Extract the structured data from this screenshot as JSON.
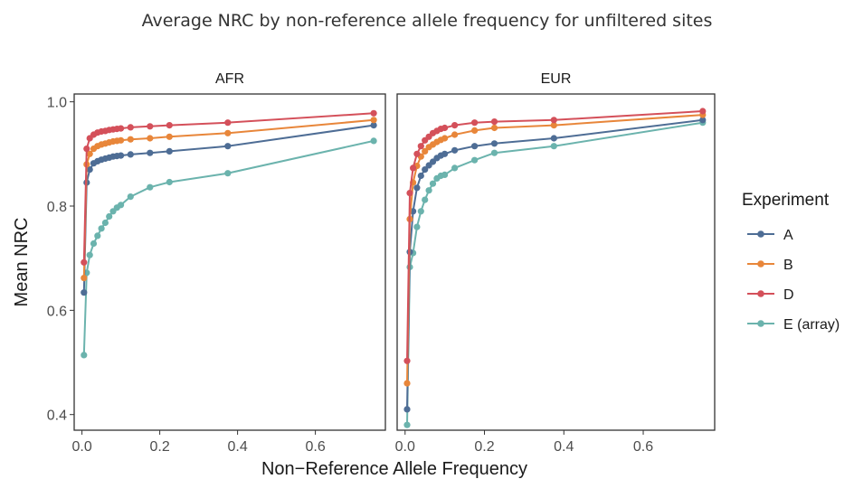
{
  "page": {
    "title": "Average NRC by non-reference allele frequency for unfiltered sites"
  },
  "chart_data": {
    "type": "line",
    "xlabel": "Non−Reference Allele Frequency",
    "ylabel": "Mean NRC",
    "xlim": [
      -0.02,
      0.78
    ],
    "ylim": [
      0.37,
      1.015
    ],
    "xticks": [
      0.0,
      0.2,
      0.4,
      0.6
    ],
    "xtick_labels": [
      "0.0",
      "0.2",
      "0.4",
      "0.6"
    ],
    "yticks": [
      0.4,
      0.6,
      0.8,
      1.0
    ],
    "ytick_labels": [
      "0.4",
      "0.6",
      "0.8",
      "1.0"
    ],
    "grid": false,
    "legend": {
      "title": "Experiment",
      "position": "right"
    },
    "series_styles": [
      {
        "name": "A",
        "color": "#4e6d95"
      },
      {
        "name": "B",
        "color": "#e8863a"
      },
      {
        "name": "D",
        "color": "#d4505a"
      },
      {
        "name": "E (array)",
        "color": "#6bb3ad"
      }
    ],
    "panels": [
      {
        "name": "AFR",
        "series": [
          {
            "name": "A",
            "points": [
              [
                0.005,
                0.634
              ],
              [
                0.012,
                0.845
              ],
              [
                0.02,
                0.87
              ],
              [
                0.03,
                0.882
              ],
              [
                0.04,
                0.886
              ],
              [
                0.05,
                0.889
              ],
              [
                0.06,
                0.891
              ],
              [
                0.07,
                0.893
              ],
              [
                0.08,
                0.895
              ],
              [
                0.09,
                0.896
              ],
              [
                0.1,
                0.897
              ],
              [
                0.125,
                0.899
              ],
              [
                0.175,
                0.902
              ],
              [
                0.225,
                0.905
              ],
              [
                0.375,
                0.915
              ],
              [
                0.75,
                0.955
              ]
            ]
          },
          {
            "name": "B",
            "points": [
              [
                0.005,
                0.662
              ],
              [
                0.012,
                0.88
              ],
              [
                0.02,
                0.9
              ],
              [
                0.03,
                0.91
              ],
              [
                0.04,
                0.915
              ],
              [
                0.05,
                0.918
              ],
              [
                0.06,
                0.92
              ],
              [
                0.07,
                0.922
              ],
              [
                0.08,
                0.924
              ],
              [
                0.09,
                0.925
              ],
              [
                0.1,
                0.926
              ],
              [
                0.125,
                0.928
              ],
              [
                0.175,
                0.93
              ],
              [
                0.225,
                0.933
              ],
              [
                0.375,
                0.94
              ],
              [
                0.75,
                0.965
              ]
            ]
          },
          {
            "name": "D",
            "points": [
              [
                0.005,
                0.692
              ],
              [
                0.012,
                0.91
              ],
              [
                0.02,
                0.93
              ],
              [
                0.03,
                0.937
              ],
              [
                0.04,
                0.941
              ],
              [
                0.05,
                0.943
              ],
              [
                0.06,
                0.944
              ],
              [
                0.07,
                0.946
              ],
              [
                0.08,
                0.947
              ],
              [
                0.09,
                0.948
              ],
              [
                0.1,
                0.949
              ],
              [
                0.125,
                0.951
              ],
              [
                0.175,
                0.953
              ],
              [
                0.225,
                0.955
              ],
              [
                0.375,
                0.96
              ],
              [
                0.75,
                0.978
              ]
            ]
          },
          {
            "name": "E (array)",
            "points": [
              [
                0.005,
                0.514
              ],
              [
                0.012,
                0.672
              ],
              [
                0.02,
                0.706
              ],
              [
                0.03,
                0.728
              ],
              [
                0.04,
                0.743
              ],
              [
                0.05,
                0.757
              ],
              [
                0.06,
                0.768
              ],
              [
                0.07,
                0.78
              ],
              [
                0.08,
                0.79
              ],
              [
                0.09,
                0.797
              ],
              [
                0.1,
                0.802
              ],
              [
                0.125,
                0.818
              ],
              [
                0.175,
                0.836
              ],
              [
                0.225,
                0.846
              ],
              [
                0.375,
                0.863
              ],
              [
                0.75,
                0.925
              ]
            ]
          }
        ]
      },
      {
        "name": "EUR",
        "series": [
          {
            "name": "A",
            "points": [
              [
                0.005,
                0.41
              ],
              [
                0.012,
                0.712
              ],
              [
                0.02,
                0.79
              ],
              [
                0.03,
                0.835
              ],
              [
                0.04,
                0.858
              ],
              [
                0.05,
                0.87
              ],
              [
                0.06,
                0.878
              ],
              [
                0.07,
                0.885
              ],
              [
                0.08,
                0.892
              ],
              [
                0.09,
                0.897
              ],
              [
                0.1,
                0.9
              ],
              [
                0.125,
                0.907
              ],
              [
                0.175,
                0.915
              ],
              [
                0.225,
                0.92
              ],
              [
                0.375,
                0.93
              ],
              [
                0.75,
                0.965
              ]
            ]
          },
          {
            "name": "B",
            "points": [
              [
                0.005,
                0.46
              ],
              [
                0.012,
                0.775
              ],
              [
                0.02,
                0.845
              ],
              [
                0.03,
                0.877
              ],
              [
                0.04,
                0.895
              ],
              [
                0.05,
                0.905
              ],
              [
                0.06,
                0.913
              ],
              [
                0.07,
                0.918
              ],
              [
                0.08,
                0.923
              ],
              [
                0.09,
                0.927
              ],
              [
                0.1,
                0.93
              ],
              [
                0.125,
                0.937
              ],
              [
                0.175,
                0.945
              ],
              [
                0.225,
                0.95
              ],
              [
                0.375,
                0.955
              ],
              [
                0.75,
                0.975
              ]
            ]
          },
          {
            "name": "D",
            "points": [
              [
                0.005,
                0.503
              ],
              [
                0.012,
                0.825
              ],
              [
                0.02,
                0.873
              ],
              [
                0.03,
                0.9
              ],
              [
                0.04,
                0.915
              ],
              [
                0.05,
                0.926
              ],
              [
                0.06,
                0.933
              ],
              [
                0.07,
                0.94
              ],
              [
                0.08,
                0.944
              ],
              [
                0.09,
                0.948
              ],
              [
                0.1,
                0.95
              ],
              [
                0.125,
                0.955
              ],
              [
                0.175,
                0.96
              ],
              [
                0.225,
                0.962
              ],
              [
                0.375,
                0.965
              ],
              [
                0.75,
                0.982
              ]
            ]
          },
          {
            "name": "E (array)",
            "points": [
              [
                0.005,
                0.38
              ],
              [
                0.012,
                0.683
              ],
              [
                0.02,
                0.71
              ],
              [
                0.03,
                0.76
              ],
              [
                0.04,
                0.79
              ],
              [
                0.05,
                0.812
              ],
              [
                0.06,
                0.83
              ],
              [
                0.07,
                0.843
              ],
              [
                0.08,
                0.853
              ],
              [
                0.09,
                0.858
              ],
              [
                0.1,
                0.86
              ],
              [
                0.125,
                0.873
              ],
              [
                0.175,
                0.888
              ],
              [
                0.225,
                0.902
              ],
              [
                0.375,
                0.915
              ],
              [
                0.75,
                0.96
              ]
            ]
          }
        ]
      }
    ]
  }
}
